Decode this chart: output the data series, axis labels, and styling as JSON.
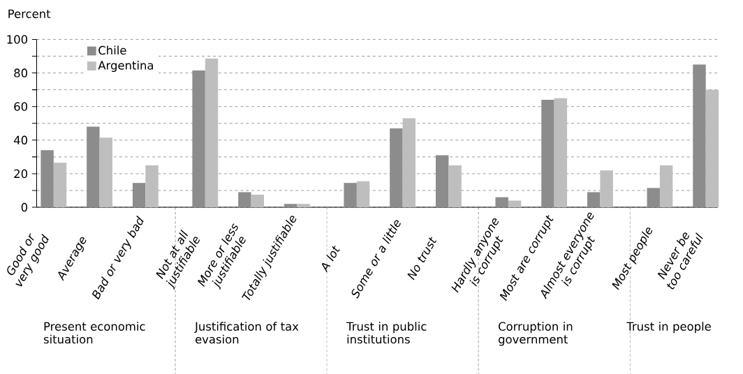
{
  "chart_data": {
    "type": "bar",
    "ylabel": "Percent",
    "categories": [
      "Good or very good",
      "Average",
      "Bad or very bad",
      "Not at all justifiable",
      "More or less justifiable",
      "Totally justifiable",
      "A lot",
      "Some or a little",
      "No trust",
      "Hardly anyone is corrupt",
      "Most are corrupt",
      "Almost everyone is corrupt",
      "Most people",
      "Never be too careful"
    ],
    "series": [
      {
        "name": "Chile",
        "color": "#8c8c8c",
        "values": [
          34,
          48,
          14.5,
          81.5,
          9,
          2,
          14.5,
          47,
          31,
          6,
          64,
          9,
          11.5,
          85
        ]
      },
      {
        "name": "Argentina",
        "color": "#bebebe",
        "values": [
          26.5,
          41.5,
          25,
          88.5,
          7.5,
          2,
          15.5,
          53,
          25,
          4,
          65,
          22,
          25,
          70
        ]
      }
    ],
    "annotations": [
      "Present economic situation",
      "Justification of tax evasion",
      "Trust in public institutions",
      "Corruption in government",
      "Trust in people"
    ],
    "ylim": [
      0,
      100
    ],
    "yticks": [
      0,
      {
        "value": 10,
        "label": null
      },
      20,
      {
        "value": 30,
        "label": null
      },
      40,
      {
        "value": 50,
        "label": null
      },
      60,
      {
        "value": 70,
        "label": null
      },
      80,
      {
        "value": 90,
        "label": null
      },
      100
    ],
    "grid": "y",
    "legend": "top left"
  }
}
